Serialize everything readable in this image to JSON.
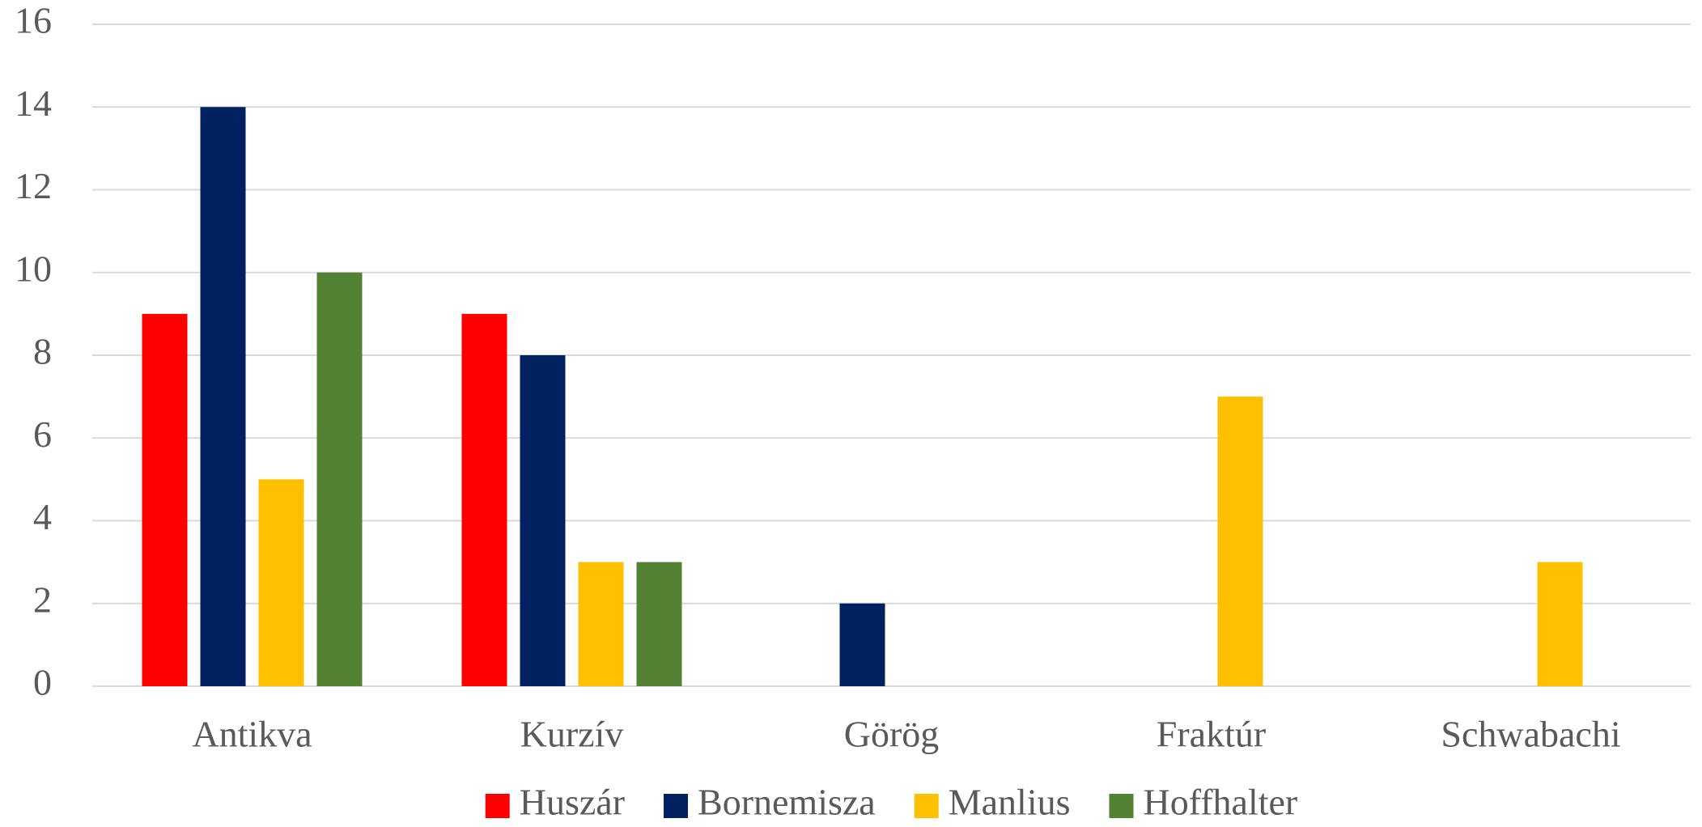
{
  "chart_data": {
    "type": "bar",
    "categories": [
      "Antikva",
      "Kurzív",
      "Görög",
      "Fraktúr",
      "Schwabachi"
    ],
    "series": [
      {
        "name": "Huszár",
        "color": "#FF0000",
        "values": [
          9,
          9,
          0,
          0,
          0
        ]
      },
      {
        "name": "Bornemisza",
        "color": "#002060",
        "values": [
          14,
          8,
          2,
          0,
          0
        ]
      },
      {
        "name": "Manlius",
        "color": "#FFC000",
        "values": [
          5,
          3,
          0,
          7,
          3
        ]
      },
      {
        "name": "Hoffhalter",
        "color": "#548235",
        "values": [
          10,
          3,
          0,
          0,
          0
        ]
      }
    ],
    "ylim": [
      0,
      16
    ],
    "yticks": [
      0,
      2,
      4,
      6,
      8,
      10,
      12,
      14,
      16
    ],
    "grid": true,
    "legend": "bottom"
  }
}
